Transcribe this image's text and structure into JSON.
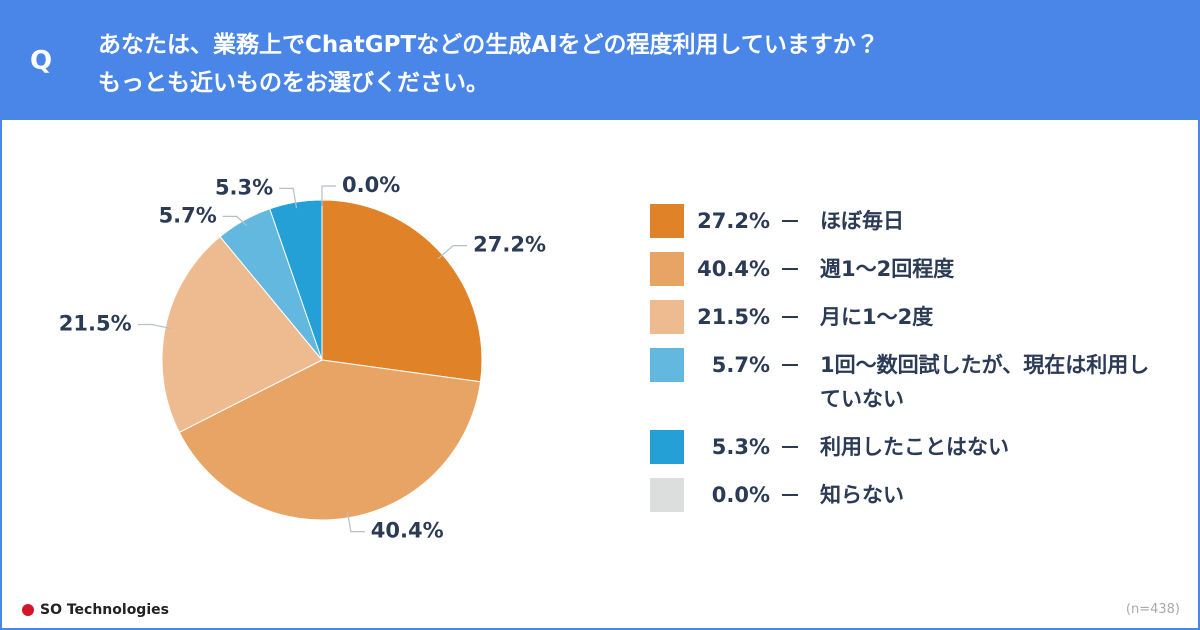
{
  "header": {
    "mark": "Q",
    "title_lines": [
      "あなたは、業務上でChatGPTなどの生成AIをどの程度利用していますか？",
      "もっとも近いものをお選びください。"
    ]
  },
  "chart_data": {
    "type": "pie",
    "categories": [
      "ほぼ毎日",
      "週1〜2回程度",
      "月に1〜2度",
      "1回〜数回試したが、現在は利用していない",
      "利用したことはない",
      "知らない"
    ],
    "values": [
      27.2,
      40.4,
      21.5,
      5.7,
      5.3,
      0.0
    ],
    "value_labels": [
      "27.2%",
      "40.4%",
      "21.5%",
      "5.7%",
      "5.3%",
      "0.0%"
    ],
    "colors": [
      "#e08228",
      "#e8a465",
      "#edbb8f",
      "#62b8de",
      "#25a0d6",
      "#dcdddd"
    ]
  },
  "footer": {
    "brand": "SO Technologies",
    "note": "(n=438)"
  }
}
